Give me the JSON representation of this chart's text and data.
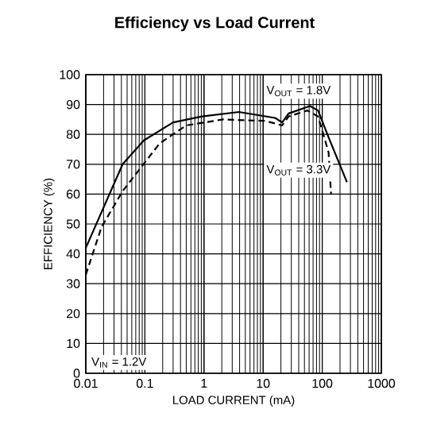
{
  "chart_data": {
    "type": "line",
    "title": "Efficiency vs Load Current",
    "xlabel": "LOAD CURRENT (mA)",
    "ylabel": "EFFICIENCY (%)",
    "log": "x",
    "grid": true,
    "xlim": [
      0.01,
      1000
    ],
    "ylim": [
      0,
      100
    ],
    "xticks": [
      0.01,
      0.1,
      1,
      10,
      100,
      1000
    ],
    "yticks": [
      0,
      10,
      20,
      30,
      40,
      50,
      60,
      70,
      80,
      90,
      100
    ],
    "annotations": [
      "V$_{IN}$ = 1.2V"
    ],
    "series": [
      {
        "name": "V$_{OUT}$ = 1.8V",
        "color": "#000000",
        "line_style": "solid",
        "x": [
          0.01,
          0.042,
          0.096,
          0.3,
          0.92,
          3.9,
          16,
          21,
          27,
          62,
          85,
          128,
          262
        ],
        "values": [
          42,
          70,
          78,
          84,
          86,
          87.5,
          85.5,
          84,
          87,
          89.5,
          88,
          79,
          64
        ]
      },
      {
        "name": "V$_{OUT}$ = 3.3V",
        "color": "#000000",
        "line_style": "dashed",
        "x": [
          0.01,
          0.0185,
          0.042,
          0.178,
          0.5,
          2.1,
          11,
          21,
          27,
          56,
          85,
          128,
          141
        ],
        "values": [
          33,
          49,
          61,
          77,
          83,
          85,
          84.5,
          83,
          86,
          88,
          86,
          74,
          60
        ]
      }
    ]
  }
}
